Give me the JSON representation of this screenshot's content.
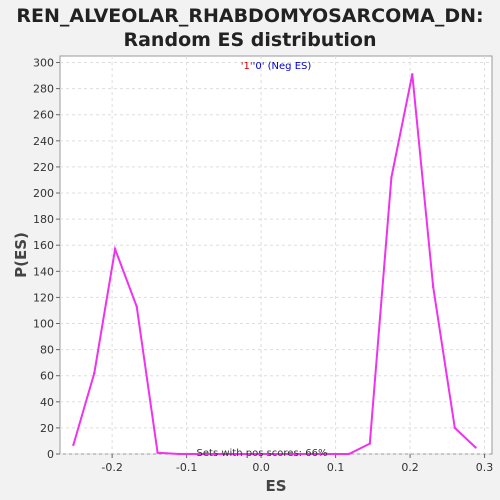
{
  "chart_data": {
    "type": "line",
    "title_line1": "REN_ALVEOLAR_RHABDOMYOSARCOMA_DN:",
    "title_line2": "Random ES distribution",
    "xlabel": "ES",
    "ylabel": "P(ES)",
    "xlim": [
      -0.27,
      0.31
    ],
    "ylim": [
      0,
      305
    ],
    "x_ticks": [
      -0.2,
      -0.1,
      0.0,
      0.1,
      0.2,
      0.3
    ],
    "x_tick_labels": [
      "-0.2",
      "-0.1",
      "0.0",
      "0.1",
      "0.2",
      "0.3"
    ],
    "y_ticks": [
      0,
      20,
      40,
      60,
      80,
      100,
      120,
      140,
      160,
      180,
      200,
      220,
      240,
      260,
      280,
      300
    ],
    "y_tick_labels": [
      "0",
      "20",
      "40",
      "60",
      "80",
      "100",
      "120",
      "140",
      "160",
      "180",
      "200",
      "220",
      "240",
      "260",
      "280",
      "300"
    ],
    "grid": true,
    "legend": {
      "position": "top-center",
      "parts": [
        {
          "text": "'1'",
          "color": "#cc0000"
        },
        {
          "text": "'0'",
          "color": "#0000cc"
        },
        {
          "text": " (Neg ES)",
          "color": "#0000cc"
        }
      ]
    },
    "annotation": "Sets with pos scores: 66%",
    "series": [
      {
        "color": "#ee33ee",
        "x": [
          -0.252,
          -0.224,
          -0.196,
          -0.167,
          -0.139,
          -0.11,
          -0.082,
          -0.053,
          -0.025,
          0.004,
          0.032,
          0.061,
          0.089,
          0.118,
          0.146,
          0.175,
          0.203,
          0.231,
          0.26,
          0.288
        ],
        "y": [
          7,
          62,
          157,
          113,
          1,
          0,
          0,
          0,
          0,
          0,
          0,
          0,
          0,
          0,
          8,
          212,
          291,
          128,
          20,
          5
        ]
      }
    ]
  }
}
